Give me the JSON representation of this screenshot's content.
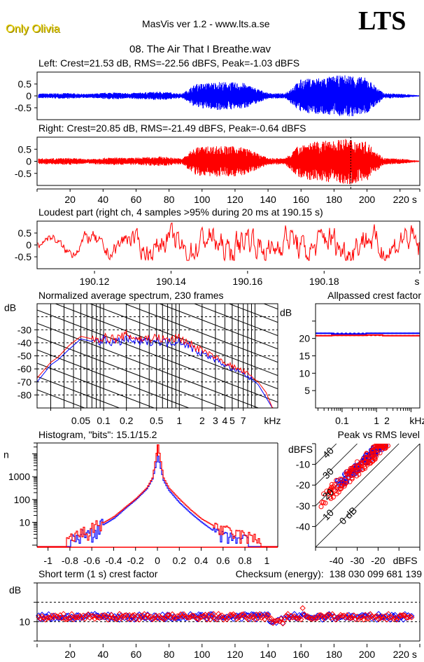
{
  "header": {
    "brand": "Only Olivia",
    "app_title": "MasVis ver 1.2 - www.lts.a.se",
    "logo": "LTS",
    "file_name": "08. The Air That I Breathe.wav"
  },
  "colors": {
    "left": "#0000ff",
    "right": "#ff0000",
    "axis": "#000000",
    "background": "#ffffff"
  },
  "chart_data": [
    {
      "id": "waveform-left",
      "type": "area",
      "title": "Left: Crest=21.53 dB, RMS=-22.56 dBFS, Peak=-1.03 dBFS",
      "ylim": [
        -1,
        1
      ],
      "yticks": [
        "0.5",
        "0",
        "-0.5"
      ],
      "ytick_values": [
        0.5,
        0,
        -0.5
      ],
      "xlim": [
        0,
        232
      ],
      "envelope": {
        "t": [
          0,
          20,
          30,
          45,
          55,
          75,
          88,
          96,
          110,
          125,
          140,
          150,
          160,
          175,
          190,
          200,
          210,
          222,
          232
        ],
        "amp": [
          0.1,
          0.12,
          0.08,
          0.15,
          0.12,
          0.18,
          0.1,
          0.5,
          0.6,
          0.55,
          0.12,
          0.1,
          0.7,
          0.8,
          0.9,
          0.75,
          0.12,
          0.08,
          0.02
        ]
      }
    },
    {
      "id": "waveform-right",
      "type": "area",
      "title": "Right: Crest=20.85 dB, RMS=-21.49 dBFS, Peak=-0.64 dBFS",
      "ylim": [
        -1,
        1
      ],
      "yticks": [
        "0.5",
        "0",
        "-0.5"
      ],
      "ytick_values": [
        0.5,
        0,
        -0.5
      ],
      "xlim": [
        0,
        232
      ],
      "xticks": [
        "20",
        "40",
        "60",
        "80",
        "100",
        "120",
        "140",
        "160",
        "180",
        "200",
        "220 s"
      ],
      "xtick_values": [
        20,
        40,
        60,
        80,
        100,
        120,
        140,
        160,
        180,
        200,
        220
      ],
      "marker_time": 190.15,
      "envelope": {
        "t": [
          0,
          20,
          30,
          45,
          55,
          75,
          88,
          96,
          110,
          125,
          140,
          150,
          160,
          175,
          190,
          200,
          210,
          222,
          232
        ],
        "amp": [
          0.12,
          0.14,
          0.1,
          0.16,
          0.14,
          0.2,
          0.12,
          0.6,
          0.65,
          0.6,
          0.14,
          0.12,
          0.75,
          0.85,
          0.95,
          0.8,
          0.14,
          0.1,
          0.02
        ]
      }
    },
    {
      "id": "loudest-part",
      "type": "line",
      "title": "Loudest part (right ch, 4 samples >95% during 20 ms at 190.15 s)",
      "ylim": [
        -1,
        1
      ],
      "yticks": [
        "0.5",
        "0",
        "-0.5"
      ],
      "ytick_values": [
        0.5,
        0,
        -0.5
      ],
      "xlim": [
        190.105,
        190.205
      ],
      "xticks": [
        "190.12",
        "190.14",
        "190.16",
        "190.18",
        "s"
      ],
      "xtick_values": [
        190.12,
        190.14,
        190.16,
        190.18,
        190.205
      ],
      "series_color": "right"
    },
    {
      "id": "spectrum",
      "type": "line",
      "title": "Normalized average spectrum, 230 frames",
      "ylabel": "dB",
      "xlabel": "kHz",
      "xscale": "log",
      "xlim": [
        0.0132,
        20
      ],
      "ylim": [
        -90,
        -10
      ],
      "yticks": [
        "-30",
        "-40",
        "-50",
        "-60",
        "-70",
        "-80"
      ],
      "ytick_values": [
        -30,
        -40,
        -50,
        -60,
        -70,
        -80
      ],
      "xticks": [
        "0.05",
        "0.1",
        "0.2",
        "0.5",
        "1",
        "2",
        "3",
        "4",
        "5",
        "7",
        "kHz"
      ],
      "xtick_values": [
        0.05,
        0.1,
        0.2,
        0.5,
        1,
        2,
        3,
        4,
        5,
        7,
        15
      ],
      "series": [
        {
          "name": "Left",
          "color": "left",
          "x": [
            0.0132,
            0.02,
            0.025,
            0.035,
            0.05,
            0.07,
            0.1,
            0.15,
            0.2,
            0.3,
            0.5,
            0.7,
            1,
            1.5,
            2,
            3,
            4,
            5,
            7,
            9,
            11,
            14,
            17
          ],
          "y": [
            -70,
            -57,
            -53,
            -45,
            -37,
            -39,
            -38,
            -40,
            -37,
            -40,
            -38,
            -40,
            -38,
            -44,
            -48,
            -53,
            -57,
            -60,
            -64,
            -68,
            -72,
            -82,
            -90
          ]
        },
        {
          "name": "Right",
          "color": "right",
          "x": [
            0.0132,
            0.02,
            0.025,
            0.035,
            0.05,
            0.07,
            0.1,
            0.15,
            0.2,
            0.3,
            0.5,
            0.7,
            1,
            1.5,
            2,
            3,
            4,
            5,
            7,
            9,
            11,
            14,
            17
          ],
          "y": [
            -67,
            -55,
            -51,
            -42,
            -35,
            -37,
            -36,
            -37,
            -34,
            -37,
            -36,
            -38,
            -36,
            -42,
            -46,
            -51,
            -55,
            -58,
            -62,
            -66,
            -70,
            -78,
            -90
          ]
        }
      ]
    },
    {
      "id": "allpassed-crest",
      "type": "line",
      "title": "Allpassed crest factor",
      "ylabel": "dB",
      "xlabel": "kHz",
      "xscale": "log",
      "xlim": [
        0.017,
        18
      ],
      "ylim": [
        0,
        30
      ],
      "yticks": [
        "20",
        "15",
        "10",
        "5"
      ],
      "ytick_values": [
        20,
        15,
        10,
        5
      ],
      "xticks": [
        "0.1",
        "1",
        "2",
        "kHz"
      ],
      "xtick_values": [
        0.1,
        1,
        2,
        10
      ],
      "series": [
        {
          "name": "Left",
          "color": "left",
          "x": [
            0.017,
            0.05,
            0.5,
            1.5,
            18
          ],
          "y": [
            21.5,
            21.3,
            21.5,
            21.5,
            21.5
          ],
          "reference": 21.53
        },
        {
          "name": "Right",
          "color": "right",
          "x": [
            0.017,
            0.05,
            0.5,
            1.5,
            18
          ],
          "y": [
            20.8,
            20.9,
            21.0,
            20.8,
            20.8
          ],
          "reference": 20.85
        }
      ]
    },
    {
      "id": "histogram",
      "type": "line",
      "title": "Histogram, \"bits\": 15.1/15.2",
      "ylabel": "n",
      "yscale": "log",
      "ylim": [
        1,
        30000
      ],
      "xlim": [
        -1.1,
        1.1
      ],
      "yticks": [
        "1000",
        "100",
        "10"
      ],
      "ytick_values": [
        1000,
        100,
        10
      ],
      "xticks": [
        "-1",
        "-0.8",
        "-0.6",
        "-0.4",
        "-0.2",
        "0",
        "0.2",
        "0.4",
        "0.6",
        "0.8",
        "1"
      ],
      "xtick_values": [
        -1,
        -0.8,
        -0.6,
        -0.4,
        -0.2,
        0,
        0.2,
        0.4,
        0.6,
        0.8,
        1
      ],
      "series": [
        {
          "name": "Left",
          "color": "left",
          "x": [
            -0.8,
            -0.6,
            -0.4,
            -0.3,
            -0.2,
            -0.1,
            -0.05,
            0,
            0.05,
            0.1,
            0.2,
            0.3,
            0.4,
            0.6,
            0.82
          ],
          "y": [
            1.5,
            4,
            15,
            40,
            100,
            300,
            800,
            8000,
            700,
            250,
            70,
            25,
            10,
            2,
            1.5
          ]
        },
        {
          "name": "Right",
          "color": "right",
          "x": [
            -0.84,
            -0.6,
            -0.4,
            -0.3,
            -0.2,
            -0.1,
            -0.05,
            0,
            0.05,
            0.1,
            0.2,
            0.3,
            0.4,
            0.6,
            0.94
          ],
          "y": [
            1.5,
            5,
            18,
            45,
            110,
            330,
            900,
            25000,
            900,
            320,
            100,
            35,
            14,
            4,
            1.5
          ]
        }
      ]
    },
    {
      "id": "peak-vs-rms",
      "type": "scatter",
      "title": "Peak vs RMS level",
      "ylabel": "dBFS",
      "xlabel": "dBFS",
      "xlim": [
        -50,
        0
      ],
      "ylim": [
        -50,
        0
      ],
      "xticks": [
        "-40",
        "-30",
        "-20",
        "dBFS"
      ],
      "xtick_values": [
        -40,
        -30,
        -20,
        -7
      ],
      "yticks": [
        "-10",
        "-20",
        "-30",
        "-40"
      ],
      "ytick_values": [
        -10,
        -20,
        -30,
        -40
      ],
      "crest_lines": [
        "0 dB",
        "10",
        "20",
        "30",
        "40"
      ],
      "crest_values": [
        0,
        10,
        20,
        30,
        40
      ],
      "clusters": [
        {
          "color": "left",
          "rms_range": [
            -43,
            -16
          ],
          "crest_mean": 18.5,
          "crest_spread": 2.5,
          "count": 110
        },
        {
          "color": "right",
          "rms_range": [
            -48,
            -15
          ],
          "crest_mean": 18,
          "crest_spread": 3.5,
          "count": 140
        }
      ]
    },
    {
      "id": "short-term-crest",
      "type": "scatter",
      "title": "Short term (1 s) crest factor",
      "ylabel": "dB",
      "xlim": [
        0,
        232
      ],
      "ylim": [
        0,
        30
      ],
      "yticks": [
        "10"
      ],
      "ytick_values": [
        10
      ],
      "dashed_levels": [
        10,
        20
      ],
      "xticks": [
        "20",
        "40",
        "60",
        "80",
        "100",
        "120",
        "140",
        "160",
        "180",
        "200",
        "220 s"
      ],
      "xtick_values": [
        20,
        40,
        60,
        80,
        100,
        120,
        140,
        160,
        180,
        200,
        220
      ],
      "typical_value": 12.5,
      "spread": 1.5
    }
  ],
  "checksum": {
    "label": "Checksum (energy):",
    "value": "138 030 099 681 139"
  }
}
